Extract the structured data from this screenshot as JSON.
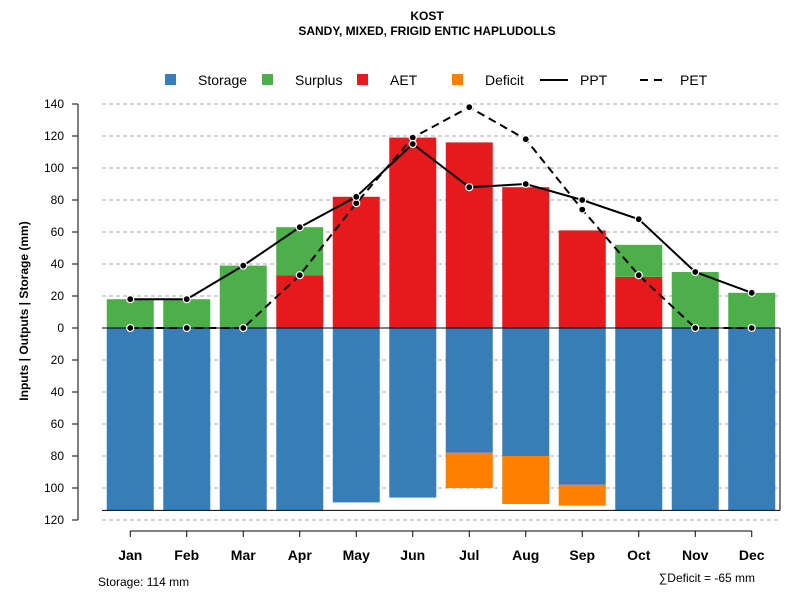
{
  "chart_data": {
    "type": "bar",
    "title": "KOST",
    "subtitle": "SANDY, MIXED, FRIGID ENTIC HAPLUDOLLS",
    "ylabel": "Inputs | Outputs | Storage    (mm)",
    "categories": [
      "Jan",
      "Feb",
      "Mar",
      "Apr",
      "May",
      "Jun",
      "Jul",
      "Aug",
      "Sep",
      "Oct",
      "Nov",
      "Dec"
    ],
    "ylim": [
      -120,
      140
    ],
    "y_ticks": [
      140,
      120,
      100,
      80,
      60,
      40,
      20,
      0,
      -20,
      -40,
      -60,
      -80,
      -100,
      -120
    ],
    "y_tick_labels": [
      "140",
      "120",
      "100",
      "80",
      "60",
      "40",
      "20",
      "0",
      "20",
      "40",
      "60",
      "80",
      "100",
      "120"
    ],
    "legend": [
      {
        "name": "Storage",
        "kind": "box",
        "color": "#377EB8"
      },
      {
        "name": "Surplus",
        "kind": "box",
        "color": "#4DAF4A"
      },
      {
        "name": "AET",
        "kind": "box",
        "color": "#E41A1C"
      },
      {
        "name": "Deficit",
        "kind": "box",
        "color": "#FF7F00"
      },
      {
        "name": "PPT",
        "kind": "solid",
        "color": "#000000"
      },
      {
        "name": "PET",
        "kind": "dashed",
        "color": "#000000"
      }
    ],
    "series": [
      {
        "name": "AET",
        "color": "#E41A1C",
        "values": [
          0,
          0,
          0,
          33,
          82,
          119,
          116,
          88,
          61,
          32,
          0,
          0
        ]
      },
      {
        "name": "Surplus",
        "color": "#4DAF4A",
        "values": [
          18,
          18,
          39,
          30,
          0,
          0,
          0,
          0,
          0,
          20,
          35,
          22
        ]
      },
      {
        "name": "Storage",
        "color": "#377EB8",
        "values": [
          -114,
          -114,
          -114,
          -114,
          -109,
          -106,
          -78,
          -80,
          -98,
          -114,
          -114,
          -114
        ]
      },
      {
        "name": "Deficit",
        "color": "#FF7F00",
        "values": [
          0,
          0,
          0,
          0,
          0,
          0,
          -22,
          -30,
          -13,
          0,
          0,
          0
        ]
      },
      {
        "name": "PPT",
        "color": "#000000",
        "style": "solid",
        "values": [
          18,
          18,
          39,
          63,
          82,
          115,
          88,
          90,
          80,
          68,
          35,
          22
        ]
      },
      {
        "name": "PET",
        "color": "#000000",
        "style": "dashed",
        "values": [
          0,
          0,
          0,
          33,
          78,
          119,
          138,
          118,
          74,
          33,
          0,
          0
        ]
      }
    ],
    "storage_capacity": -114,
    "footnote_left": "Storage: 114 mm",
    "footnote_right": "∑Deficit = -65 mm"
  }
}
